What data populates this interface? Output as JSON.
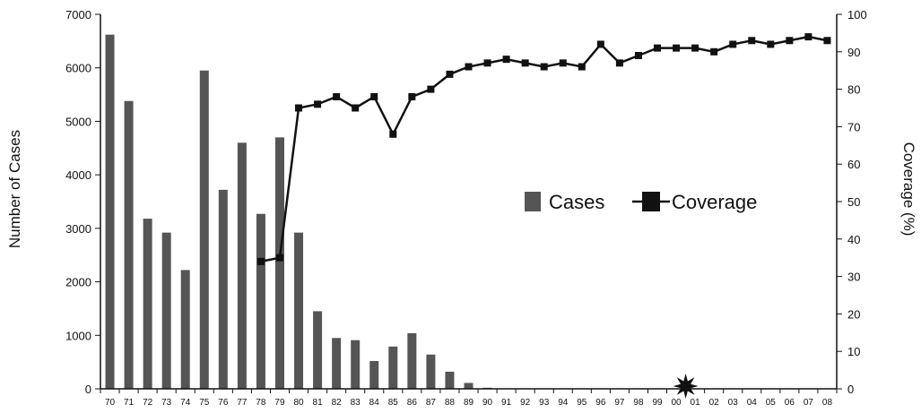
{
  "chart_data": {
    "type": "bar",
    "title": "",
    "ylabel": "Number of Cases",
    "y2label": "Coverage (%)",
    "ylim": [
      0,
      7000
    ],
    "y2lim": [
      0,
      100
    ],
    "yticks": [
      "0",
      "1000",
      "2000",
      "3000",
      "4000",
      "5000",
      "6000",
      "7000"
    ],
    "y2ticks": [
      "0",
      "10",
      "20",
      "30",
      "40",
      "50",
      "60",
      "70",
      "80",
      "90",
      "100"
    ],
    "categories": [
      "70",
      "71",
      "72",
      "73",
      "74",
      "75",
      "76",
      "77",
      "78",
      "79",
      "80",
      "81",
      "82",
      "83",
      "84",
      "85",
      "86",
      "87",
      "88",
      "89",
      "90",
      "91",
      "92",
      "93",
      "94",
      "95",
      "96",
      "97",
      "98",
      "99",
      "00",
      "01",
      "02",
      "03",
      "04",
      "05",
      "06",
      "07",
      "08"
    ],
    "series": [
      {
        "name": "Cases",
        "kind": "bar",
        "axis": "left",
        "color": "#555555",
        "values": [
          6620,
          5380,
          3180,
          2920,
          2220,
          5950,
          3720,
          4600,
          3270,
          4700,
          2920,
          1450,
          950,
          910,
          520,
          790,
          1040,
          640,
          320,
          110,
          20,
          0,
          0,
          0,
          0,
          0,
          0,
          0,
          0,
          0,
          0,
          0,
          0,
          0,
          0,
          0,
          0,
          0,
          0
        ]
      },
      {
        "name": "Coverage",
        "kind": "line",
        "axis": "right",
        "color": "#111111",
        "values": [
          null,
          null,
          null,
          null,
          null,
          null,
          null,
          null,
          34,
          35,
          75,
          76,
          78,
          75,
          78,
          68,
          78,
          80,
          84,
          86,
          87,
          88,
          87,
          86,
          87,
          86,
          92,
          87,
          89,
          91,
          91,
          91,
          90,
          92,
          93,
          92,
          93,
          94,
          93
        ]
      }
    ],
    "legend": [
      "Cases",
      "Coverage"
    ],
    "legend_position": "center-right",
    "annotation": {
      "marker": "star",
      "between": [
        "00",
        "01"
      ],
      "value": 0
    }
  }
}
